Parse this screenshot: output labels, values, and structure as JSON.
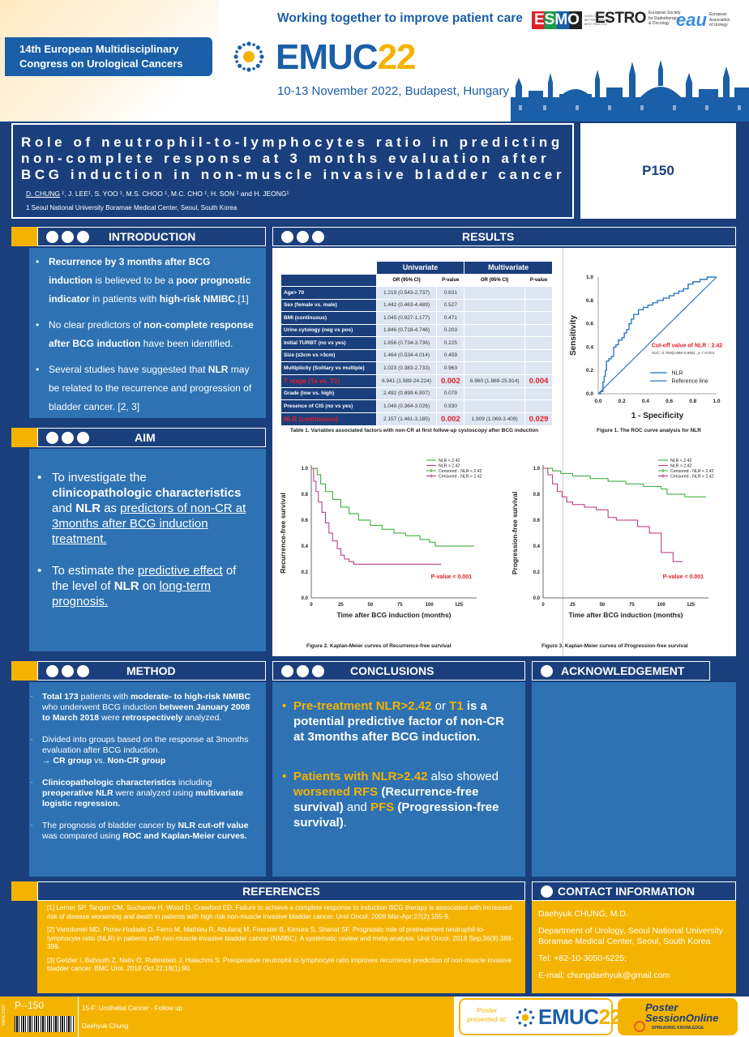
{
  "header": {
    "tagline": "Working together to improve patient care",
    "congress_lines": [
      "14th European Multidisciplinary",
      "Congress on Urological Cancers"
    ],
    "brand_emuc": "EMUC",
    "brand_year": "22",
    "dates": "10-13 November 2022, Budapest, Hungary",
    "logos": {
      "esmo": "ESMO",
      "esmo_small": [
        "GOOD SCIENCE",
        "BETTER MEDICINE",
        "BEST PRACTICE"
      ],
      "estro": "ESTRO",
      "estro_small": [
        "European Society",
        "for Radiotherapy",
        "& Oncology"
      ],
      "eau": "eau",
      "eau_small": [
        "European",
        "Association",
        "of Urology"
      ]
    }
  },
  "title_block": {
    "title_lines": [
      "Role of neutrophil-to-lymphocytes ratio in predicting",
      "non-complete response at 3 months evaluation after",
      "BCG induction in non-muscle invasive bladder cancer"
    ],
    "author_lead": "D. CHUNG",
    "authors_rest": " ¹, J. LEE¹, S. YOO ¹, M.S. CHOO ¹, M.C. CHO ¹, H. SON ¹ and H. JEONG¹",
    "affiliation": "1 Seoul National University Boramae Medical Center, Seoul, South Korea",
    "poster_id": "P150"
  },
  "sections": {
    "introduction": "INTRODUCTION",
    "results": "RESULTS",
    "aim": "AIM",
    "method": "METHOD",
    "conclusions": "CONCLUSIONS",
    "acknowledgement": "ACKNOWLEDGEMENT",
    "references": "REFERENCES",
    "contact": "CONTACT INFORMATION"
  },
  "introduction": {
    "b1": {
      "a": "Recurrence by 3 months after BCG induction",
      "b": " is believed to be a ",
      "c": "poor prognostic indicator",
      "d": " in patients with ",
      "e": "high-risk NMIBC",
      "f": ".[1]"
    },
    "b2": {
      "a": "No clear predictors of ",
      "b": "non-complete response after BCG induction",
      "c": " have been identified."
    },
    "b3": {
      "a": "Several studies have suggested that ",
      "b": "NLR",
      "c": " may be related to the recurrence and progression of bladder cancer. [2, 3]"
    }
  },
  "aim": {
    "b1": {
      "a": "To investigate the ",
      "b": "clinicopathologic characteristics",
      "c": " and ",
      "d": "NLR",
      "e": " as ",
      "f": "predictors of non-CR at 3months after BCG induction treatment."
    },
    "b2": {
      "a": "To estimate the ",
      "b": "predictive effect",
      "c": " of the level of ",
      "d": "NLR",
      "e": " on ",
      "f": "long-term prognosis."
    }
  },
  "method": {
    "b1": {
      "a": "Total 173",
      "b": " patients with ",
      "c": "moderate- to high-risk NMIBC",
      "d": " who underwent BCG induction ",
      "e": "between January 2008 to March 2018",
      "f": " were ",
      "g": "retrospectively",
      "h": " analyzed."
    },
    "b2": {
      "a": "Divided into groups based on the response at 3months evaluation after BCG induction.",
      "b": "→ ",
      "c": "CR group",
      "d": " vs. ",
      "e": "Non-CR group"
    },
    "b3": {
      "a": "Clinicopathologic characteristics",
      "b": " including ",
      "c": "preoperative NLR",
      "d": " were analyzed using ",
      "e": "multivariate logistic regression."
    },
    "b4": {
      "a": "The prognosis of bladder cancer by ",
      "b": "NLR cut-off value",
      "c": " was compared using ",
      "d": "ROC and Kaplan-Meier curves."
    }
  },
  "table": {
    "h_univariate": "Univariate",
    "h_multivariate": "Multivariate",
    "h_or": "OR (95% CI)",
    "h_p": "P-value",
    "rows": [
      {
        "label": "Age> 70",
        "u_or": "1.219 (0.543-2.737)",
        "u_p": "0.631",
        "m_or": "",
        "m_p": "",
        "hl": false
      },
      {
        "label": "Sex (female vs. male)",
        "u_or": "1.442 (0.463-4.489)",
        "u_p": "0.527",
        "m_or": "",
        "m_p": "",
        "hl": false
      },
      {
        "label": "BMI (continuous)",
        "u_or": "1.045 (0.927-1.177)",
        "u_p": "0.471",
        "m_or": "",
        "m_p": "",
        "hl": false
      },
      {
        "label": "Urine cytology (neg vs pos)",
        "u_or": "1.846 (0.718-4.746)",
        "u_p": "0.203",
        "m_or": "",
        "m_p": "",
        "hl": false
      },
      {
        "label": "Initial TURBT (no vs yes)",
        "u_or": "1.656 (0.734-3.736)",
        "u_p": "0.225",
        "m_or": "",
        "m_p": "",
        "hl": false
      },
      {
        "label": "Size (≤3cm vs >3cm)",
        "u_or": "1.464 (0.534-4.014)",
        "u_p": "0.459",
        "m_or": "",
        "m_p": "",
        "hl": false
      },
      {
        "label": "Multiplicity (Solitary vs multiple)",
        "u_or": "1.023 (0.383-2.733)",
        "u_p": "0.963",
        "m_or": "",
        "m_p": "",
        "hl": false
      },
      {
        "label": "T stage (Ta vs. T1)",
        "u_or": "6.941 (1.989-24.224)",
        "u_p": "0.002",
        "m_or": "6.960 (1.869-25.914)",
        "m_p": "0.004",
        "hl": true
      },
      {
        "label": "Grade (low vs. high)",
        "u_or": "2.492 (0.899-6.907)",
        "u_p": "0.079",
        "m_or": "",
        "m_p": "",
        "hl": false
      },
      {
        "label": "Presence of CIS (no vs yes)",
        "u_or": "1.049 (0.364-3.026)",
        "u_p": "0.930",
        "m_or": "",
        "m_p": "",
        "hl": false
      },
      {
        "label": "NLR (continuous)",
        "u_or": "2.157 (1.461-3.185)",
        "u_p": "0.002",
        "m_or": "1.909 (1.069-3.409)",
        "m_p": "0.029",
        "hl": true
      }
    ],
    "caption": "Table 1. Variables associated factors with non-CR at first follow-up cystoscopy after BCG induction"
  },
  "roc": {
    "ylabel": "Sensitivity",
    "xlabel": "1 - Specificity",
    "ticks": [
      "0.0",
      "0.2",
      "0.4",
      "0.6",
      "0.8",
      "1.0"
    ],
    "cutoff": "Cut-off value of NLR :  2.42",
    "auc": "AUC: 0.760(0.666-0.855) , p < 0.001",
    "legend_nlr": "NLR",
    "legend_ref": "Reference line",
    "caption": "Figure 1. The ROC curve analysis for NLR",
    "nlr_curve": [
      [
        0,
        0
      ],
      [
        0.02,
        0.02
      ],
      [
        0.04,
        0.1
      ],
      [
        0.05,
        0.15
      ],
      [
        0.06,
        0.2
      ],
      [
        0.07,
        0.28
      ],
      [
        0.09,
        0.3
      ],
      [
        0.11,
        0.32
      ],
      [
        0.13,
        0.4
      ],
      [
        0.15,
        0.42
      ],
      [
        0.17,
        0.46
      ],
      [
        0.2,
        0.48
      ],
      [
        0.22,
        0.52
      ],
      [
        0.24,
        0.55
      ],
      [
        0.26,
        0.6
      ],
      [
        0.28,
        0.64
      ],
      [
        0.3,
        0.68
      ],
      [
        0.34,
        0.72
      ],
      [
        0.38,
        0.74
      ],
      [
        0.42,
        0.76
      ],
      [
        0.46,
        0.78
      ],
      [
        0.5,
        0.8
      ],
      [
        0.55,
        0.82
      ],
      [
        0.6,
        0.84
      ],
      [
        0.64,
        0.86
      ],
      [
        0.68,
        0.88
      ],
      [
        0.72,
        0.9
      ],
      [
        0.76,
        0.94
      ],
      [
        0.8,
        0.96
      ],
      [
        0.86,
        0.98
      ],
      [
        0.92,
        1.0
      ],
      [
        1,
        1
      ]
    ]
  },
  "km_rfs": {
    "ylabel": "Recurrence-free survival",
    "xlabel": "Time after BCG induction (months)",
    "yticks": [
      "0.0",
      "0.2",
      "0.4",
      "0.6",
      "0.8",
      "1.0"
    ],
    "xticks": [
      "0",
      "25",
      "50",
      "75",
      "100",
      "125"
    ],
    "legend": [
      "NLR < 2.42",
      "NLR > 2.42",
      "Censored - NLR < 2.42",
      "Censored - NLR > 2.42"
    ],
    "pvalue": "P-value < 0.001",
    "caption": "Figure 2. Kaplan-Meier curves of Recurrence-free survival",
    "low": [
      [
        0,
        1
      ],
      [
        5,
        0.95
      ],
      [
        8,
        0.88
      ],
      [
        12,
        0.82
      ],
      [
        18,
        0.76
      ],
      [
        25,
        0.7
      ],
      [
        32,
        0.65
      ],
      [
        40,
        0.6
      ],
      [
        50,
        0.56
      ],
      [
        60,
        0.53
      ],
      [
        70,
        0.5
      ],
      [
        80,
        0.48
      ],
      [
        92,
        0.45
      ],
      [
        100,
        0.43
      ],
      [
        105,
        0.4
      ],
      [
        138,
        0.4
      ]
    ],
    "high": [
      [
        0,
        1
      ],
      [
        2,
        0.9
      ],
      [
        4,
        0.82
      ],
      [
        6,
        0.74
      ],
      [
        9,
        0.66
      ],
      [
        12,
        0.58
      ],
      [
        15,
        0.5
      ],
      [
        18,
        0.44
      ],
      [
        22,
        0.38
      ],
      [
        25,
        0.33
      ],
      [
        28,
        0.3
      ],
      [
        32,
        0.28
      ],
      [
        36,
        0.26
      ],
      [
        110,
        0.26
      ]
    ]
  },
  "km_pfs": {
    "ylabel": "Progression-free survival",
    "xlabel": "Time after BCG induction (months)",
    "yticks": [
      "0.0",
      "0.2",
      "0.4",
      "0.6",
      "0.8",
      "1.0"
    ],
    "xticks": [
      "0",
      "25",
      "50",
      "75",
      "100",
      "125"
    ],
    "legend": [
      "NLR < 2.42",
      "NLR > 2.42",
      "Censored - NLR < 2.42",
      "Censored - NLR > 2.42"
    ],
    "pvalue": "P-value < 0.001",
    "caption": "Figure 3. Kaplan-Meier curves of Progression-free survival",
    "low": [
      [
        0,
        1
      ],
      [
        8,
        0.98
      ],
      [
        15,
        0.96
      ],
      [
        25,
        0.94
      ],
      [
        40,
        0.92
      ],
      [
        55,
        0.9
      ],
      [
        70,
        0.88
      ],
      [
        85,
        0.86
      ],
      [
        100,
        0.84
      ],
      [
        105,
        0.8
      ],
      [
        120,
        0.78
      ],
      [
        138,
        0.78
      ]
    ],
    "high": [
      [
        0,
        1
      ],
      [
        4,
        0.95
      ],
      [
        8,
        0.88
      ],
      [
        12,
        0.82
      ],
      [
        16,
        0.78
      ],
      [
        20,
        0.74
      ],
      [
        25,
        0.72
      ],
      [
        35,
        0.7
      ],
      [
        45,
        0.68
      ],
      [
        55,
        0.62
      ],
      [
        62,
        0.6
      ],
      [
        80,
        0.55
      ],
      [
        90,
        0.5
      ],
      [
        100,
        0.35
      ],
      [
        110,
        0.28
      ],
      [
        118,
        0.28
      ]
    ]
  },
  "conclusions": {
    "b1": {
      "a": "Pre-treatment NLR>2.42",
      "b": " or ",
      "c": "T1",
      "d": " is a potential predictive factor of non-CR at 3months after BCG induction."
    },
    "b2": {
      "a": "Patients with NLR>2.42",
      "b": " also showed ",
      "c": "worsened RFS",
      "d": " (Recurrence-free survival)",
      "e": " and ",
      "f": "PFS",
      "g": " (Progression-free survival)",
      "h": "."
    }
  },
  "references": [
    "[1] Lerner SP, Tangen CM, Sucharew H, Wood D, Crawford ED. Failure to achieve a complete response to induction BCG therapy is associated with increased risk of disease worsening and death in patients with high risk non-muscle invasive bladder cancer. Urol Oncol. 2009 Mar-Apr;27(2):155-9.",
    "[2] Vartolomei MD, Porav-Hodade D, Ferro M, Mathieu R, Abufaraj M, Foerster B, Kimura S, Shariat SF. Prognostic role of pretreatment neutrophil-to-lymphocyte ratio (NLR) in patients with non-muscle-invasive bladder cancer (NMIBC): A systematic review and meta-analysis. Urol Oncol. 2018 Sep;36(9):389-399.",
    "[3] Getzler I, Bahouth Z, Nativ O, Rubinstein J, Halachmi S. Preoperative neutrophil to lymphocyte ratio improves recurrence prediction of non-muscle invasive bladder cancer. BMC Urol. 2018 Oct 22;18(1):90."
  ],
  "contact": {
    "name": "Daehyuk CHUNG, M.D.",
    "dept": "Department of Urology, Seoul National University Boramae Medical Center, Seoul, South Korea",
    "tel": "Tel: +82-10-3050-6225;",
    "email": "E-mail: chungdaehyuk@gmail.com"
  },
  "footer": {
    "side_tag": "EMUC2022",
    "poster_no": "P--150",
    "track": "15-F: Urothelial Cancer - Follow up",
    "author": "Daehyuk Chung",
    "presented_1": "Poster",
    "presented_2": "presented at:",
    "pso_1": "Poster",
    "pso_2": "SessionOnline",
    "pso_3": "SPREADING KNOWLEDGE"
  },
  "colors": {
    "navy": "#1a3f7c",
    "blue": "#2e72b3",
    "yellow": "#f5b301",
    "red": "#e0202a"
  }
}
